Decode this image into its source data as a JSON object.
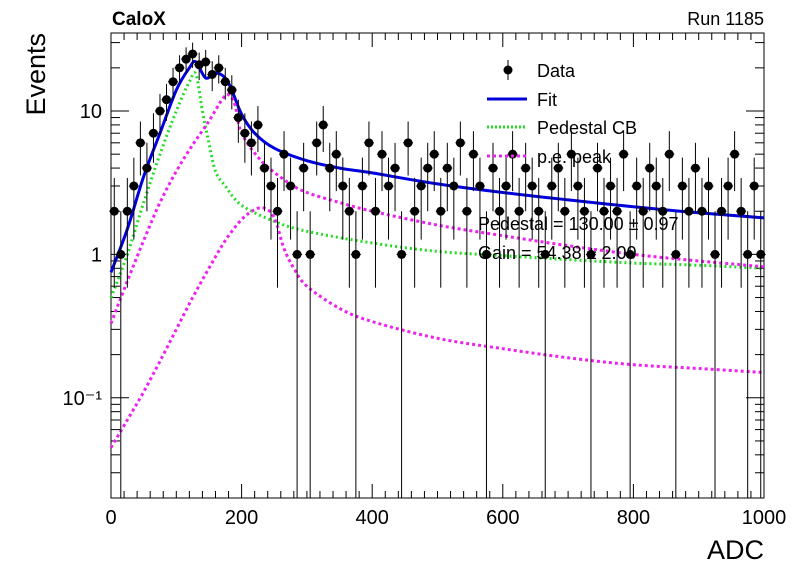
{
  "header": {
    "experiment": "CaloX",
    "run_label": "Run 1185"
  },
  "stats": {
    "pedestal": "Pedestal = 130.00 ± 0.97",
    "gain": "Gain = 54.38 ± 2.00"
  },
  "colors": {
    "data": "#000000",
    "fit": "#0000dd",
    "pedestal_cb": "#22dd22",
    "pe_peak": "#ee22ee"
  },
  "chart_data": {
    "type": "scatter",
    "xlabel": "ADC",
    "ylabel": "Events",
    "xlim": [
      0,
      1000
    ],
    "ylim": [
      0.02,
      35
    ],
    "yscale": "log",
    "x_ticks": [
      "0",
      "200",
      "400",
      "600",
      "800",
      "1000"
    ],
    "y_ticks": [
      {
        "value": 0.1,
        "label": "10⁻¹"
      },
      {
        "value": 1,
        "label": "1"
      },
      {
        "value": 10,
        "label": "10"
      }
    ],
    "legend": {
      "placement": "top-right",
      "entries": [
        {
          "label": "Data",
          "style": "marker"
        },
        {
          "label": "Fit",
          "style": "solid"
        },
        {
          "label": "Pedestal CB",
          "style": "dotted"
        },
        {
          "label": "p.e. peak",
          "style": "dotted"
        }
      ]
    },
    "data_points": {
      "x": [
        5,
        15,
        25,
        35,
        45,
        55,
        65,
        75,
        85,
        95,
        105,
        115,
        125,
        135,
        145,
        155,
        165,
        175,
        185,
        195,
        205,
        215,
        225,
        235,
        245,
        255,
        265,
        275,
        285,
        295,
        305,
        315,
        325,
        335,
        345,
        355,
        365,
        375,
        385,
        395,
        405,
        415,
        425,
        435,
        445,
        455,
        465,
        475,
        485,
        495,
        505,
        515,
        525,
        535,
        545,
        555,
        565,
        575,
        585,
        595,
        605,
        615,
        625,
        635,
        645,
        655,
        665,
        675,
        685,
        695,
        705,
        715,
        725,
        735,
        745,
        755,
        765,
        775,
        785,
        795,
        805,
        815,
        825,
        835,
        845,
        855,
        865,
        875,
        885,
        895,
        905,
        915,
        925,
        935,
        945,
        955,
        965,
        975,
        985,
        995
      ],
      "y": [
        2,
        1,
        2,
        3,
        6,
        4,
        7,
        10,
        12,
        16,
        20,
        23,
        25,
        21,
        22,
        18,
        20,
        16,
        14,
        9,
        7,
        6,
        8,
        4,
        3,
        2,
        5,
        3,
        1,
        4,
        1,
        6,
        8,
        4,
        5,
        3,
        2,
        1,
        3,
        6,
        2,
        5,
        3,
        4,
        1,
        6,
        2,
        3,
        4,
        5,
        2,
        4,
        3,
        6,
        2,
        5,
        3,
        1,
        4,
        2,
        3,
        5,
        2,
        4,
        3,
        2,
        1,
        3,
        4,
        2,
        5,
        3,
        2,
        1,
        4,
        2,
        3,
        2,
        5,
        1,
        3,
        2,
        4,
        3,
        2,
        5,
        1,
        3,
        2,
        4,
        2,
        3,
        1,
        2,
        3,
        5,
        2,
        1,
        3,
        1
      ]
    },
    "series": [
      {
        "name": "Fit",
        "x": [
          0,
          25,
          50,
          75,
          100,
          120,
          130,
          145,
          160,
          175,
          185,
          200,
          220,
          250,
          300,
          350,
          400,
          500,
          600,
          700,
          800,
          900,
          1000
        ],
        "y": [
          0.75,
          1.5,
          3.5,
          7,
          14,
          20,
          22,
          17,
          18.5,
          17,
          14,
          9.5,
          7,
          5.5,
          4.5,
          4,
          3.7,
          3.1,
          2.7,
          2.4,
          2.15,
          1.95,
          1.8
        ]
      },
      {
        "name": "Pedestal CB",
        "x": [
          0,
          25,
          50,
          75,
          100,
          120,
          130,
          140,
          150,
          160,
          175,
          200,
          250,
          300,
          400,
          500,
          600,
          700,
          800,
          900,
          1000
        ],
        "y": [
          0.5,
          1,
          2.3,
          5,
          10,
          16,
          18,
          10,
          6,
          3.8,
          3,
          2.2,
          1.7,
          1.45,
          1.2,
          1.05,
          0.98,
          0.92,
          0.87,
          0.84,
          0.8
        ]
      },
      {
        "name": "p.e. peak",
        "x": [
          0,
          25,
          50,
          75,
          100,
          125,
          150,
          170,
          180,
          190,
          200,
          230,
          270,
          300,
          350,
          400,
          500,
          600,
          700,
          800,
          900,
          1000
        ],
        "y": [
          0.33,
          0.65,
          1.25,
          2.3,
          3.8,
          5.8,
          8.5,
          12,
          13,
          11,
          7,
          4.5,
          3.2,
          2.7,
          2.3,
          2,
          1.6,
          1.35,
          1.15,
          1,
          0.9,
          0.82
        ]
      },
      {
        "name": "p.e. peak",
        "x": [
          0,
          25,
          50,
          75,
          100,
          125,
          150,
          175,
          200,
          220,
          235,
          250,
          265,
          280,
          300,
          350,
          400,
          500,
          600,
          700,
          800,
          900,
          1000
        ],
        "y": [
          0.045,
          0.07,
          0.11,
          0.18,
          0.3,
          0.5,
          0.8,
          1.25,
          1.75,
          2.05,
          2.1,
          1.8,
          1.1,
          0.8,
          0.6,
          0.42,
          0.34,
          0.26,
          0.22,
          0.19,
          0.17,
          0.16,
          0.15
        ]
      }
    ]
  }
}
